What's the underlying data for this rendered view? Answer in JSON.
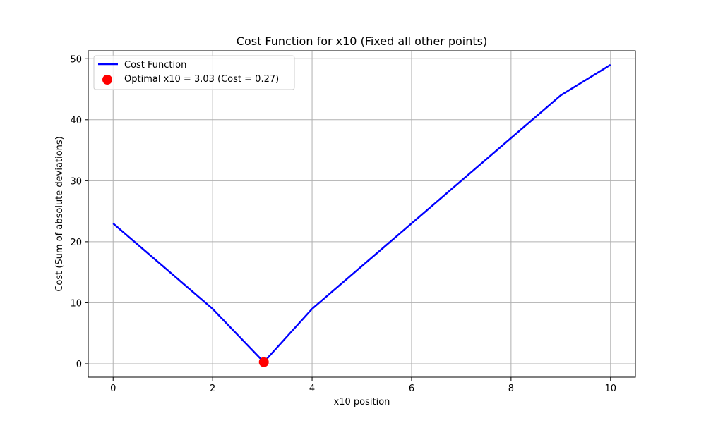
{
  "chart_data": {
    "type": "line",
    "title": "Cost Function for x10 (Fixed all other points)",
    "xlabel": "x10 position",
    "ylabel": "Cost (Sum of absolute deviations)",
    "xlim": [
      -0.5,
      10.5
    ],
    "ylim": [
      -2.2,
      51.3
    ],
    "xticks": [
      0,
      2,
      4,
      6,
      8,
      10
    ],
    "yticks": [
      0,
      10,
      20,
      30,
      40,
      50
    ],
    "grid": true,
    "legend_position": "top-left",
    "series": [
      {
        "name": "Cost Function",
        "color": "#0000ff",
        "x": [
          0,
          1,
          2,
          3.03,
          4,
          5,
          6,
          7,
          8,
          9,
          10
        ],
        "y": [
          23,
          16,
          9,
          0.27,
          9,
          16,
          23,
          30,
          37,
          44,
          49
        ]
      }
    ],
    "optimal_point": {
      "name": "Optimal x10 = 3.03 (Cost = 0.27)",
      "color": "#ff0000",
      "x": 3.03,
      "y": 0.27
    }
  }
}
